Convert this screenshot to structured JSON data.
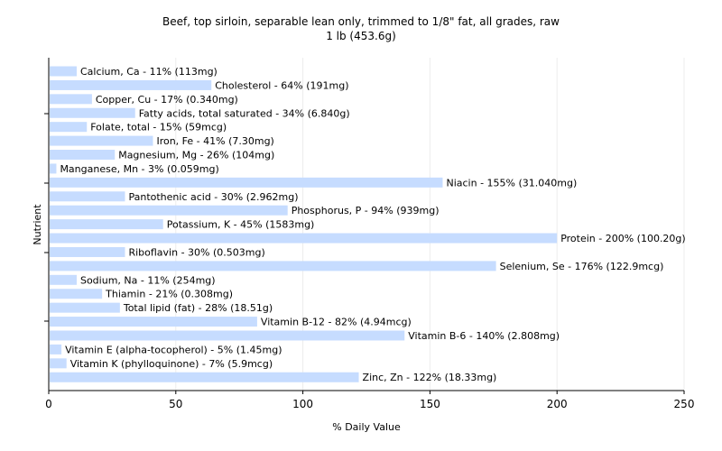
{
  "chart_data": {
    "type": "bar",
    "orientation": "horizontal",
    "title": "Beef, top sirloin, separable lean only, trimmed to 1/8\" fat, all grades, raw",
    "subtitle": "1 lb (453.6g)",
    "xlabel": "% Daily Value",
    "ylabel": "Nutrient",
    "xlim": [
      0,
      250
    ],
    "xticks": [
      0,
      50,
      100,
      150,
      200,
      250
    ],
    "grid": true,
    "bar_color": "#c6dcff",
    "bars": [
      {
        "label": "Calcium, Ca - 11% (113mg)",
        "value": 11
      },
      {
        "label": "Cholesterol - 64% (191mg)",
        "value": 64
      },
      {
        "label": "Copper, Cu - 17% (0.340mg)",
        "value": 17
      },
      {
        "label": "Fatty acids, total saturated - 34% (6.840g)",
        "value": 34
      },
      {
        "label": "Folate, total - 15% (59mcg)",
        "value": 15
      },
      {
        "label": "Iron, Fe - 41% (7.30mg)",
        "value": 41
      },
      {
        "label": "Magnesium, Mg - 26% (104mg)",
        "value": 26
      },
      {
        "label": "Manganese, Mn - 3% (0.059mg)",
        "value": 3
      },
      {
        "label": "Niacin - 155% (31.040mg)",
        "value": 155
      },
      {
        "label": "Pantothenic acid - 30% (2.962mg)",
        "value": 30
      },
      {
        "label": "Phosphorus, P - 94% (939mg)",
        "value": 94
      },
      {
        "label": "Potassium, K - 45% (1583mg)",
        "value": 45
      },
      {
        "label": "Protein - 200% (100.20g)",
        "value": 200
      },
      {
        "label": "Riboflavin - 30% (0.503mg)",
        "value": 30
      },
      {
        "label": "Selenium, Se - 176% (122.9mcg)",
        "value": 176
      },
      {
        "label": "Sodium, Na - 11% (254mg)",
        "value": 11
      },
      {
        "label": "Thiamin - 21% (0.308mg)",
        "value": 21
      },
      {
        "label": "Total lipid (fat) - 28% (18.51g)",
        "value": 28
      },
      {
        "label": "Vitamin B-12 - 82% (4.94mcg)",
        "value": 82
      },
      {
        "label": "Vitamin B-6 - 140% (2.808mg)",
        "value": 140
      },
      {
        "label": "Vitamin E (alpha-tocopherol) - 5% (1.45mg)",
        "value": 5
      },
      {
        "label": "Vitamin K (phylloquinone) - 7% (5.9mcg)",
        "value": 7
      },
      {
        "label": "Zinc, Zn - 122% (18.33mg)",
        "value": 122
      }
    ]
  }
}
